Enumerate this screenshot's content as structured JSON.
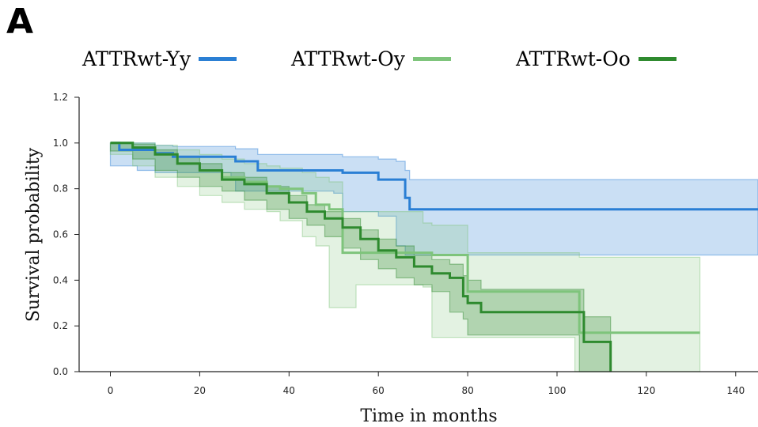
{
  "panel_label": "A",
  "chart_data": {
    "type": "line",
    "title": "",
    "xlabel": "Time in months",
    "ylabel": "Survival probability",
    "xlim": [
      -7,
      145
    ],
    "ylim": [
      0,
      1.2
    ],
    "xticks": [
      0,
      20,
      40,
      60,
      80,
      100,
      120,
      140
    ],
    "yticks": [
      0.0,
      0.2,
      0.4,
      0.6,
      0.8,
      1.0,
      1.2
    ],
    "grid": false,
    "legend_position": "top",
    "series": [
      {
        "name": "ATTRwt-Yy",
        "color": "#2a7fd4",
        "band_color": "#2a7fd4",
        "step": [
          [
            0,
            1.0
          ],
          [
            2,
            0.97
          ],
          [
            6,
            0.97
          ],
          [
            10,
            0.955
          ],
          [
            14,
            0.94
          ],
          [
            27,
            0.94
          ],
          [
            28,
            0.92
          ],
          [
            33,
            0.88
          ],
          [
            50,
            0.88
          ],
          [
            52,
            0.87
          ],
          [
            60,
            0.84
          ],
          [
            64,
            0.84
          ],
          [
            66,
            0.76
          ],
          [
            67,
            0.71
          ],
          [
            145,
            0.71
          ]
        ],
        "upper": [
          [
            0,
            1.0
          ],
          [
            2,
            1.0
          ],
          [
            6,
            1.0
          ],
          [
            10,
            0.99
          ],
          [
            14,
            0.985
          ],
          [
            27,
            0.985
          ],
          [
            28,
            0.975
          ],
          [
            33,
            0.95
          ],
          [
            50,
            0.95
          ],
          [
            52,
            0.94
          ],
          [
            60,
            0.93
          ],
          [
            64,
            0.92
          ],
          [
            66,
            0.88
          ],
          [
            67,
            0.84
          ],
          [
            145,
            0.84
          ]
        ],
        "lower": [
          [
            0,
            0.99
          ],
          [
            2,
            0.9
          ],
          [
            6,
            0.9
          ],
          [
            10,
            0.88
          ],
          [
            14,
            0.87
          ],
          [
            27,
            0.87
          ],
          [
            28,
            0.84
          ],
          [
            33,
            0.79
          ],
          [
            50,
            0.79
          ],
          [
            52,
            0.78
          ],
          [
            60,
            0.7
          ],
          [
            64,
            0.68
          ],
          [
            66,
            0.55
          ],
          [
            67,
            0.51
          ],
          [
            145,
            0.51
          ]
        ]
      },
      {
        "name": "ATTRwt-Oy",
        "color": "#7ec47b",
        "band_color": "#7ec47b",
        "step": [
          [
            0,
            1.0
          ],
          [
            5,
            0.98
          ],
          [
            10,
            0.95
          ],
          [
            15,
            0.91
          ],
          [
            20,
            0.88
          ],
          [
            25,
            0.85
          ],
          [
            30,
            0.83
          ],
          [
            35,
            0.81
          ],
          [
            38,
            0.8
          ],
          [
            43,
            0.78
          ],
          [
            46,
            0.73
          ],
          [
            49,
            0.71
          ],
          [
            52,
            0.52
          ],
          [
            55,
            0.52
          ],
          [
            70,
            0.52
          ],
          [
            72,
            0.51
          ],
          [
            80,
            0.35
          ],
          [
            104,
            0.35
          ],
          [
            105,
            0.17
          ],
          [
            132,
            0.17
          ]
        ],
        "upper": [
          [
            0,
            1.0
          ],
          [
            5,
            1.0
          ],
          [
            10,
            0.99
          ],
          [
            15,
            0.97
          ],
          [
            20,
            0.95
          ],
          [
            25,
            0.93
          ],
          [
            30,
            0.91
          ],
          [
            35,
            0.9
          ],
          [
            38,
            0.89
          ],
          [
            43,
            0.87
          ],
          [
            46,
            0.85
          ],
          [
            49,
            0.83
          ],
          [
            52,
            0.7
          ],
          [
            55,
            0.7
          ],
          [
            70,
            0.65
          ],
          [
            72,
            0.64
          ],
          [
            80,
            0.52
          ],
          [
            104,
            0.52
          ],
          [
            105,
            0.5
          ],
          [
            132,
            0.5
          ]
        ],
        "lower": [
          [
            0,
            0.99
          ],
          [
            5,
            0.95
          ],
          [
            10,
            0.9
          ],
          [
            15,
            0.85
          ],
          [
            20,
            0.81
          ],
          [
            25,
            0.77
          ],
          [
            30,
            0.74
          ],
          [
            35,
            0.71
          ],
          [
            38,
            0.7
          ],
          [
            43,
            0.66
          ],
          [
            46,
            0.59
          ],
          [
            49,
            0.55
          ],
          [
            52,
            0.28
          ],
          [
            55,
            0.28
          ],
          [
            70,
            0.38
          ],
          [
            72,
            0.37
          ],
          [
            80,
            0.15
          ],
          [
            104,
            0.15
          ],
          [
            105,
            0.0
          ],
          [
            132,
            0.0
          ]
        ]
      },
      {
        "name": "ATTRwt-Oo",
        "color": "#2e8a2e",
        "band_color": "#2e8a2e",
        "step": [
          [
            0,
            1.0
          ],
          [
            5,
            0.98
          ],
          [
            10,
            0.95
          ],
          [
            15,
            0.91
          ],
          [
            20,
            0.88
          ],
          [
            25,
            0.84
          ],
          [
            30,
            0.82
          ],
          [
            35,
            0.78
          ],
          [
            40,
            0.74
          ],
          [
            44,
            0.7
          ],
          [
            48,
            0.67
          ],
          [
            52,
            0.63
          ],
          [
            56,
            0.58
          ],
          [
            60,
            0.53
          ],
          [
            64,
            0.5
          ],
          [
            68,
            0.46
          ],
          [
            72,
            0.43
          ],
          [
            76,
            0.41
          ],
          [
            79,
            0.33
          ],
          [
            80,
            0.3
          ],
          [
            83,
            0.26
          ],
          [
            105,
            0.26
          ],
          [
            106,
            0.13
          ],
          [
            112,
            0.0
          ]
        ],
        "upper": [
          [
            0,
            1.0
          ],
          [
            5,
            0.995
          ],
          [
            10,
            0.97
          ],
          [
            15,
            0.94
          ],
          [
            20,
            0.91
          ],
          [
            25,
            0.87
          ],
          [
            30,
            0.85
          ],
          [
            35,
            0.81
          ],
          [
            40,
            0.77
          ],
          [
            44,
            0.73
          ],
          [
            48,
            0.7
          ],
          [
            52,
            0.67
          ],
          [
            56,
            0.62
          ],
          [
            60,
            0.58
          ],
          [
            64,
            0.55
          ],
          [
            68,
            0.51
          ],
          [
            72,
            0.49
          ],
          [
            76,
            0.47
          ],
          [
            79,
            0.42
          ],
          [
            80,
            0.4
          ],
          [
            83,
            0.36
          ],
          [
            105,
            0.36
          ],
          [
            106,
            0.24
          ],
          [
            112,
            0.0
          ]
        ],
        "lower": [
          [
            0,
            0.995
          ],
          [
            5,
            0.965
          ],
          [
            10,
            0.93
          ],
          [
            15,
            0.88
          ],
          [
            20,
            0.85
          ],
          [
            25,
            0.81
          ],
          [
            30,
            0.79
          ],
          [
            35,
            0.75
          ],
          [
            40,
            0.71
          ],
          [
            44,
            0.67
          ],
          [
            48,
            0.64
          ],
          [
            52,
            0.59
          ],
          [
            56,
            0.54
          ],
          [
            60,
            0.49
          ],
          [
            64,
            0.45
          ],
          [
            68,
            0.41
          ],
          [
            72,
            0.38
          ],
          [
            76,
            0.35
          ],
          [
            79,
            0.26
          ],
          [
            80,
            0.23
          ],
          [
            83,
            0.16
          ],
          [
            105,
            0.16
          ],
          [
            106,
            0.0
          ],
          [
            112,
            0.0
          ]
        ]
      }
    ]
  }
}
